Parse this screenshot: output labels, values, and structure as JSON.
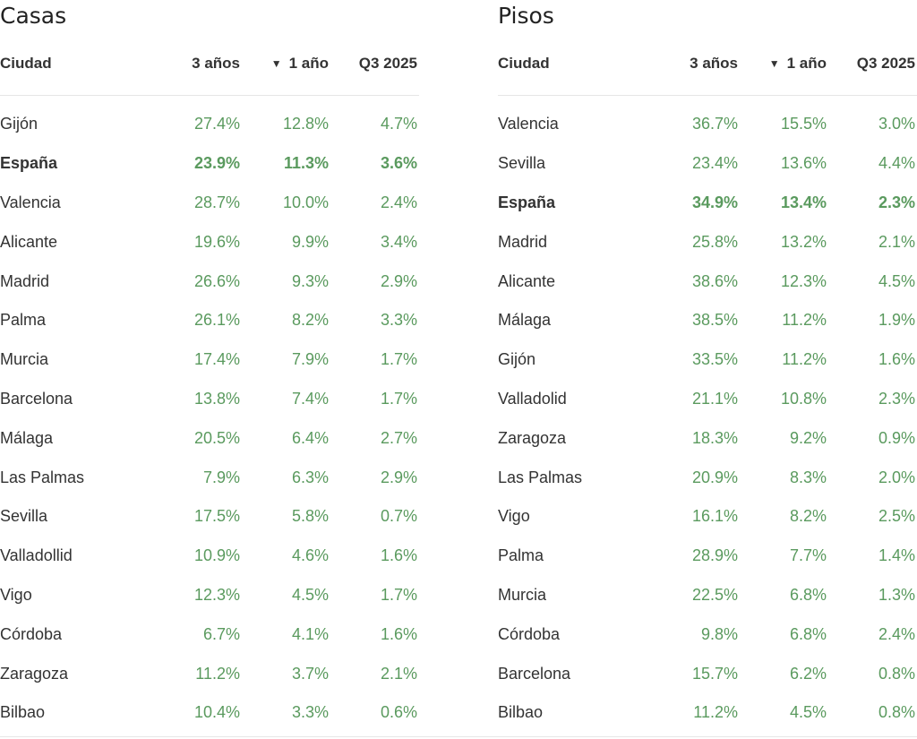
{
  "headers": {
    "city": "Ciudad",
    "col1": "3 años",
    "col2": "1 año",
    "col3": "Q3 2025",
    "sort_arrow": "▼"
  },
  "colors": {
    "positive": "#5a9a5e",
    "text": "#333333"
  },
  "tables": [
    {
      "title": "Casas",
      "rows": [
        {
          "city": "Gijón",
          "y3": "27.4%",
          "y1": "12.8%",
          "q": "4.7%",
          "bold": false
        },
        {
          "city": "España",
          "y3": "23.9%",
          "y1": "11.3%",
          "q": "3.6%",
          "bold": true
        },
        {
          "city": "Valencia",
          "y3": "28.7%",
          "y1": "10.0%",
          "q": "2.4%",
          "bold": false
        },
        {
          "city": "Alicante",
          "y3": "19.6%",
          "y1": "9.9%",
          "q": "3.4%",
          "bold": false
        },
        {
          "city": "Madrid",
          "y3": "26.6%",
          "y1": "9.3%",
          "q": "2.9%",
          "bold": false
        },
        {
          "city": "Palma",
          "y3": "26.1%",
          "y1": "8.2%",
          "q": "3.3%",
          "bold": false
        },
        {
          "city": "Murcia",
          "y3": "17.4%",
          "y1": "7.9%",
          "q": "1.7%",
          "bold": false
        },
        {
          "city": "Barcelona",
          "y3": "13.8%",
          "y1": "7.4%",
          "q": "1.7%",
          "bold": false
        },
        {
          "city": "Málaga",
          "y3": "20.5%",
          "y1": "6.4%",
          "q": "2.7%",
          "bold": false
        },
        {
          "city": "Las Palmas",
          "y3": "7.9%",
          "y1": "6.3%",
          "q": "2.9%",
          "bold": false
        },
        {
          "city": "Sevilla",
          "y3": "17.5%",
          "y1": "5.8%",
          "q": "0.7%",
          "bold": false
        },
        {
          "city": "Valladollid",
          "y3": "10.9%",
          "y1": "4.6%",
          "q": "1.6%",
          "bold": false
        },
        {
          "city": "Vigo",
          "y3": "12.3%",
          "y1": "4.5%",
          "q": "1.7%",
          "bold": false
        },
        {
          "city": "Córdoba",
          "y3": "6.7%",
          "y1": "4.1%",
          "q": "1.6%",
          "bold": false
        },
        {
          "city": "Zaragoza",
          "y3": "11.2%",
          "y1": "3.7%",
          "q": "2.1%",
          "bold": false
        },
        {
          "city": "Bilbao",
          "y3": "10.4%",
          "y1": "3.3%",
          "q": "0.6%",
          "bold": false
        }
      ]
    },
    {
      "title": "Pisos",
      "rows": [
        {
          "city": "Valencia",
          "y3": "36.7%",
          "y1": "15.5%",
          "q": "3.0%",
          "bold": false
        },
        {
          "city": "Sevilla",
          "y3": "23.4%",
          "y1": "13.6%",
          "q": "4.4%",
          "bold": false
        },
        {
          "city": "España",
          "y3": "34.9%",
          "y1": "13.4%",
          "q": "2.3%",
          "bold": true
        },
        {
          "city": "Madrid",
          "y3": "25.8%",
          "y1": "13.2%",
          "q": "2.1%",
          "bold": false
        },
        {
          "city": "Alicante",
          "y3": "38.6%",
          "y1": "12.3%",
          "q": "4.5%",
          "bold": false
        },
        {
          "city": "Málaga",
          "y3": "38.5%",
          "y1": "11.2%",
          "q": "1.9%",
          "bold": false
        },
        {
          "city": "Gijón",
          "y3": "33.5%",
          "y1": "11.2%",
          "q": "1.6%",
          "bold": false
        },
        {
          "city": "Valladolid",
          "y3": "21.1%",
          "y1": "10.8%",
          "q": "2.3%",
          "bold": false
        },
        {
          "city": "Zaragoza",
          "y3": "18.3%",
          "y1": "9.2%",
          "q": "0.9%",
          "bold": false
        },
        {
          "city": "Las Palmas",
          "y3": "20.9%",
          "y1": "8.3%",
          "q": "2.0%",
          "bold": false
        },
        {
          "city": "Vigo",
          "y3": "16.1%",
          "y1": "8.2%",
          "q": "2.5%",
          "bold": false
        },
        {
          "city": "Palma",
          "y3": "28.9%",
          "y1": "7.7%",
          "q": "1.4%",
          "bold": false
        },
        {
          "city": "Murcia",
          "y3": "22.5%",
          "y1": "6.8%",
          "q": "1.3%",
          "bold": false
        },
        {
          "city": "Córdoba",
          "y3": "9.8%",
          "y1": "6.8%",
          "q": "2.4%",
          "bold": false
        },
        {
          "city": "Barcelona",
          "y3": "15.7%",
          "y1": "6.2%",
          "q": "0.8%",
          "bold": false
        },
        {
          "city": "Bilbao",
          "y3": "11.2%",
          "y1": "4.5%",
          "q": "0.8%",
          "bold": false
        }
      ]
    }
  ]
}
